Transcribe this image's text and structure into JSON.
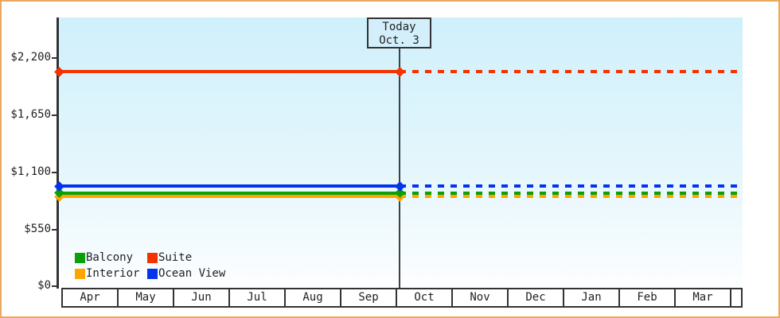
{
  "frame": {
    "border_color": "#e9a95e"
  },
  "today_box": {
    "line1": "Today",
    "line2": "Oct. 3"
  },
  "y_axis": {
    "labels": [
      "$2,200",
      "$1,650",
      "$1,100",
      "$550",
      "$0"
    ]
  },
  "x_axis": {
    "months": [
      "Apr",
      "May",
      "Jun",
      "Jul",
      "Aug",
      "Sep",
      "Oct",
      "Nov",
      "Dec",
      "Jan",
      "Feb",
      "Mar"
    ]
  },
  "legend": {
    "items": [
      {
        "label": "Balcony",
        "color": "#09a00a"
      },
      {
        "label": "Suite",
        "color": "#f43300"
      },
      {
        "label": "Interior",
        "color": "#ffa500"
      },
      {
        "label": "Ocean View",
        "color": "#0333ee"
      }
    ]
  },
  "chart_data": {
    "type": "line",
    "title": "",
    "x_categories": [
      "Apr",
      "May",
      "Jun",
      "Jul",
      "Aug",
      "Sep",
      "Oct",
      "Nov",
      "Dec",
      "Jan",
      "Feb",
      "Mar"
    ],
    "y_ticks": [
      0,
      550,
      1100,
      1650,
      2200
    ],
    "y_tick_labels": [
      "$0",
      "$550",
      "$1,100",
      "$1,650",
      "$2,200"
    ],
    "ylim": [
      0,
      2580
    ],
    "grid": false,
    "legend_position": "bottom-left",
    "today_annotation": {
      "label": "Today",
      "date": "Oct. 3"
    },
    "line_style": {
      "before_today": "solid",
      "after_today": "dashed",
      "marker": "diamond"
    },
    "series": [
      {
        "name": "Suite",
        "color": "#f43300",
        "value": 2065
      },
      {
        "name": "Ocean View",
        "color": "#0333ee",
        "value": 965
      },
      {
        "name": "Balcony",
        "color": "#09a00a",
        "value": 900
      },
      {
        "name": "Interior",
        "color": "#ffa500",
        "value": 865
      }
    ]
  }
}
